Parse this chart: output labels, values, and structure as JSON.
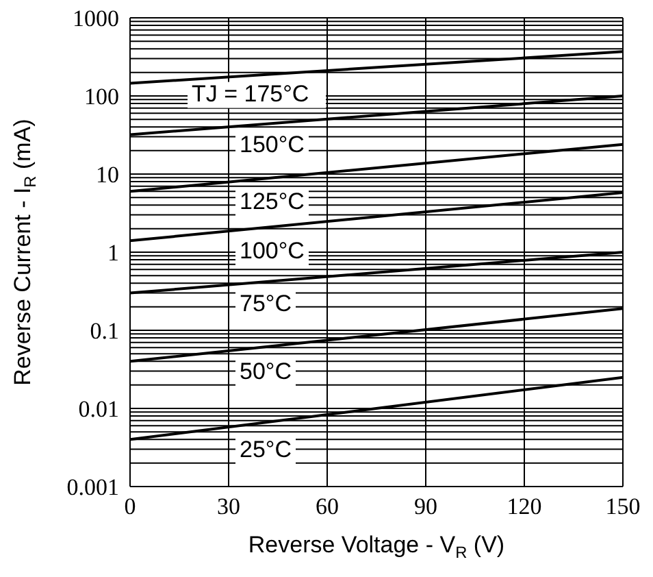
{
  "chart_data": {
    "type": "line",
    "xlabel": "Reverse Voltage - V$_{R}$ (V)",
    "ylabel": "Reverse Current - I$_{R}$ (mA)",
    "log": "y",
    "grid": true,
    "marker": "none",
    "line_style": "solid",
    "xlim": [
      0,
      150
    ],
    "xticks": [
      0,
      30,
      60,
      90,
      120,
      150
    ],
    "ylim": [
      0.001,
      1000
    ],
    "yticks": [
      0.001,
      0.01,
      0.1,
      1,
      10,
      100,
      1000
    ],
    "x": [
      0,
      150
    ],
    "series": [
      {
        "name": "TJ = 175°C",
        "color": "#000000",
        "values": [
          145,
          370
        ]
      },
      {
        "name": "150°C",
        "color": "#000000",
        "values": [
          32,
          100
        ]
      },
      {
        "name": "125°C",
        "color": "#000000",
        "values": [
          6,
          24
        ]
      },
      {
        "name": "100°C",
        "color": "#000000",
        "values": [
          1.4,
          5.8
        ]
      },
      {
        "name": "75°C",
        "color": "#000000",
        "values": [
          0.3,
          1
        ]
      },
      {
        "name": "50°C",
        "color": "#000000",
        "values": [
          0.04,
          0.19
        ]
      },
      {
        "name": "25°C",
        "color": "#000000",
        "values": [
          0.004,
          0.025
        ]
      }
    ]
  }
}
